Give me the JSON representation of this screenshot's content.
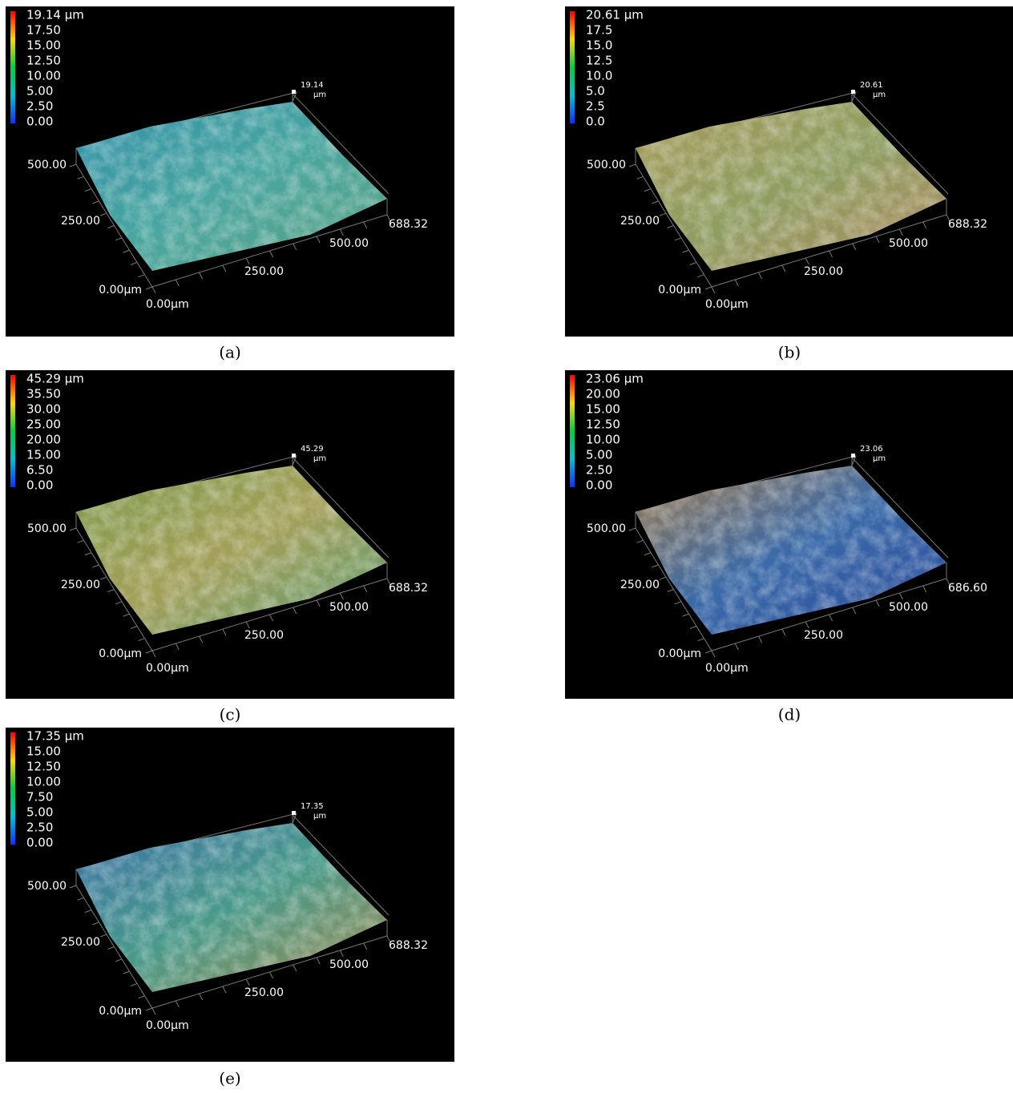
{
  "panels": [
    {
      "caption": "(a)",
      "legend_title": "19.14 µm",
      "legend_ticks": [
        "17.50",
        "15.00",
        "12.50",
        "10.00",
        "5.00",
        "2.50",
        "0.00"
      ],
      "z_value": "19.14",
      "z_unit": "µm",
      "y_labels": [
        "500.00",
        "250.00",
        "0.00µm"
      ],
      "x_labels": [
        "0.00µm",
        "250.00",
        "500.00",
        "688.32"
      ],
      "colors": [
        "#2f8fa8",
        "#4aa6a0",
        "#5aa080"
      ]
    },
    {
      "caption": "(b)",
      "legend_title": "20.61 µm",
      "legend_ticks": [
        "17.5",
        "15.0",
        "12.5",
        "10.0",
        "5.0",
        "2.5",
        "0.0"
      ],
      "z_value": "20.61",
      "z_unit": "µm",
      "y_labels": [
        "500.00",
        "250.00",
        "0.00µm"
      ],
      "x_labels": [
        "0.00µm",
        "250.00",
        "500.00",
        "688.32"
      ],
      "colors": [
        "#a89a5a",
        "#8e9e62",
        "#b08a60"
      ]
    },
    {
      "caption": "(c)",
      "legend_title": "45.29 µm",
      "legend_ticks": [
        "35.50",
        "30.00",
        "25.00",
        "20.00",
        "15.00",
        "6.50",
        "0.00"
      ],
      "z_value": "45.29",
      "z_unit": "µm",
      "y_labels": [
        "500.00",
        "250.00",
        "0.00µm"
      ],
      "x_labels": [
        "0.00µm",
        "250.00",
        "500.00",
        "688.32"
      ],
      "colors": [
        "#7a9a4a",
        "#a4a05a",
        "#5a9a70"
      ]
    },
    {
      "caption": "(d)",
      "legend_title": "23.06 µm",
      "legend_ticks": [
        "20.00",
        "15.00",
        "12.50",
        "10.00",
        "5.00",
        "2.50",
        "0.00"
      ],
      "z_value": "23.06",
      "z_unit": "µm",
      "y_labels": [
        "500.00",
        "250.00",
        "0.00µm"
      ],
      "x_labels": [
        "0.00µm",
        "250.00",
        "500.00",
        "686.60"
      ],
      "colors": [
        "#a07a4a",
        "#3a6aa8",
        "#2a4a9a"
      ]
    },
    {
      "caption": "(e)",
      "legend_title": "17.35 µm",
      "legend_ticks": [
        "15.00",
        "12.50",
        "10.00",
        "7.50",
        "5.00",
        "2.50",
        "0.00"
      ],
      "z_value": "17.35",
      "z_unit": "µm",
      "y_labels": [
        "500.00",
        "250.00",
        "0.00µm"
      ],
      "x_labels": [
        "0.00µm",
        "250.00",
        "500.00",
        "688.32"
      ],
      "colors": [
        "#3a70a8",
        "#4a9a8a",
        "#a08a4a"
      ]
    }
  ]
}
